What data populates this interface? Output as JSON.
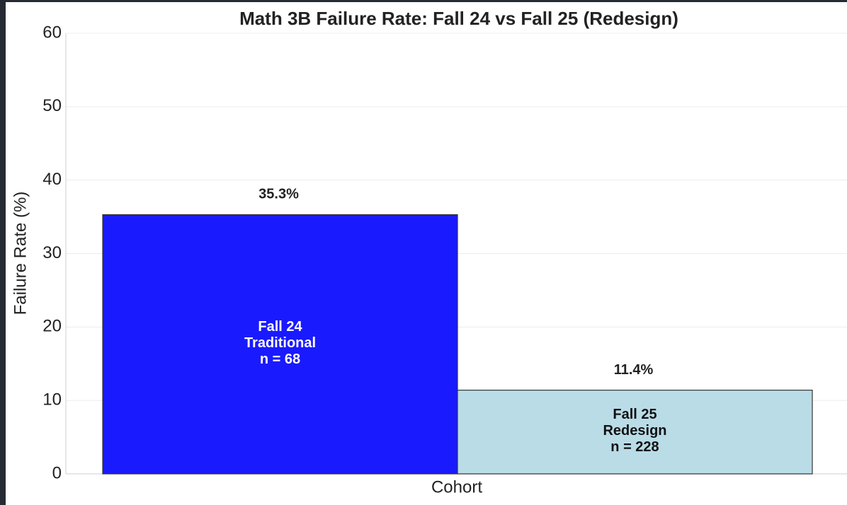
{
  "chart_data": {
    "type": "bar",
    "title": "Math 3B Failure Rate: Fall 24 vs Fall 25 (Redesign)",
    "xlabel": "Cohort",
    "ylabel": "Failure Rate (%)",
    "categories": [
      "Fall 24",
      "Fall 25"
    ],
    "subtitles": [
      "Traditional",
      "Redesign"
    ],
    "counts": [
      "n = 68",
      "n = 228"
    ],
    "values": [
      35.3,
      11.4
    ],
    "value_labels": [
      "35.3%",
      "11.4%"
    ],
    "colors": [
      "#1a1aff",
      "#b9dce7"
    ],
    "ylim": [
      0,
      60
    ],
    "yticks": [
      0,
      10,
      20,
      30,
      40,
      50,
      60
    ],
    "grid": true
  }
}
